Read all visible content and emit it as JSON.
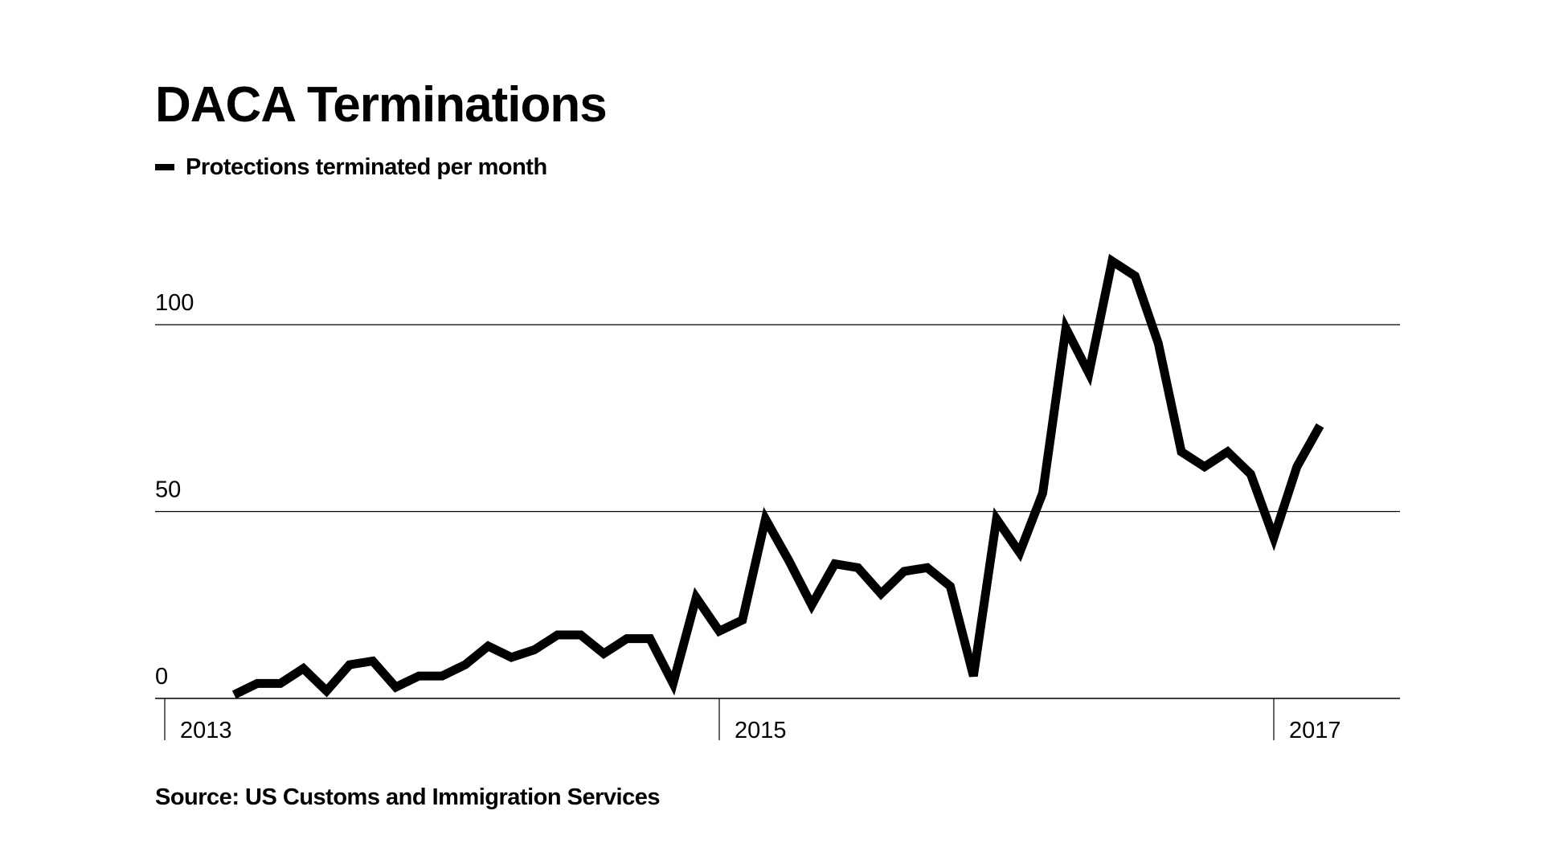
{
  "chart_data": {
    "type": "line",
    "title": "DACA Terminations",
    "legend": "Protections terminated per month",
    "source": "Source: US Customs and Immigration Services",
    "xlabel": "",
    "ylabel": "",
    "ylim": [
      0,
      112
    ],
    "yticks": [
      0,
      50,
      100
    ],
    "xticks": [
      {
        "label": "2013",
        "value": "2013-01"
      },
      {
        "label": "2015",
        "value": "2015-01"
      },
      {
        "label": "2017",
        "value": "2017-01"
      }
    ],
    "xlim": [
      "2013-01",
      "2017-05"
    ],
    "grid": "horizontal",
    "legend_position": "top-left",
    "line_color": "#000000",
    "series": [
      {
        "name": "Protections terminated per month",
        "x": [
          "2013-04",
          "2013-05",
          "2013-06",
          "2013-07",
          "2013-08",
          "2013-09",
          "2013-10",
          "2013-11",
          "2013-12",
          "2014-01",
          "2014-02",
          "2014-03",
          "2014-04",
          "2014-05",
          "2014-06",
          "2014-07",
          "2014-08",
          "2014-09",
          "2014-10",
          "2014-11",
          "2014-12",
          "2015-01",
          "2015-02",
          "2015-03",
          "2015-04",
          "2015-05",
          "2015-06",
          "2015-07",
          "2015-08",
          "2015-09",
          "2015-10",
          "2015-11",
          "2015-12",
          "2016-01",
          "2016-02",
          "2016-03",
          "2016-04",
          "2016-05",
          "2016-06",
          "2016-07",
          "2016-08",
          "2016-09",
          "2016-10",
          "2016-11",
          "2016-12",
          "2017-01",
          "2017-02",
          "2017-03"
        ],
        "values": [
          1,
          4,
          4,
          8,
          2,
          9,
          10,
          3,
          6,
          6,
          9,
          14,
          11,
          13,
          17,
          17,
          12,
          16,
          16,
          4,
          27,
          18,
          21,
          48,
          37,
          25,
          36,
          35,
          28,
          34,
          35,
          30,
          6,
          48,
          39,
          55,
          99,
          87,
          117,
          113,
          95,
          66,
          62,
          66,
          60,
          43,
          62,
          73
        ]
      }
    ]
  }
}
